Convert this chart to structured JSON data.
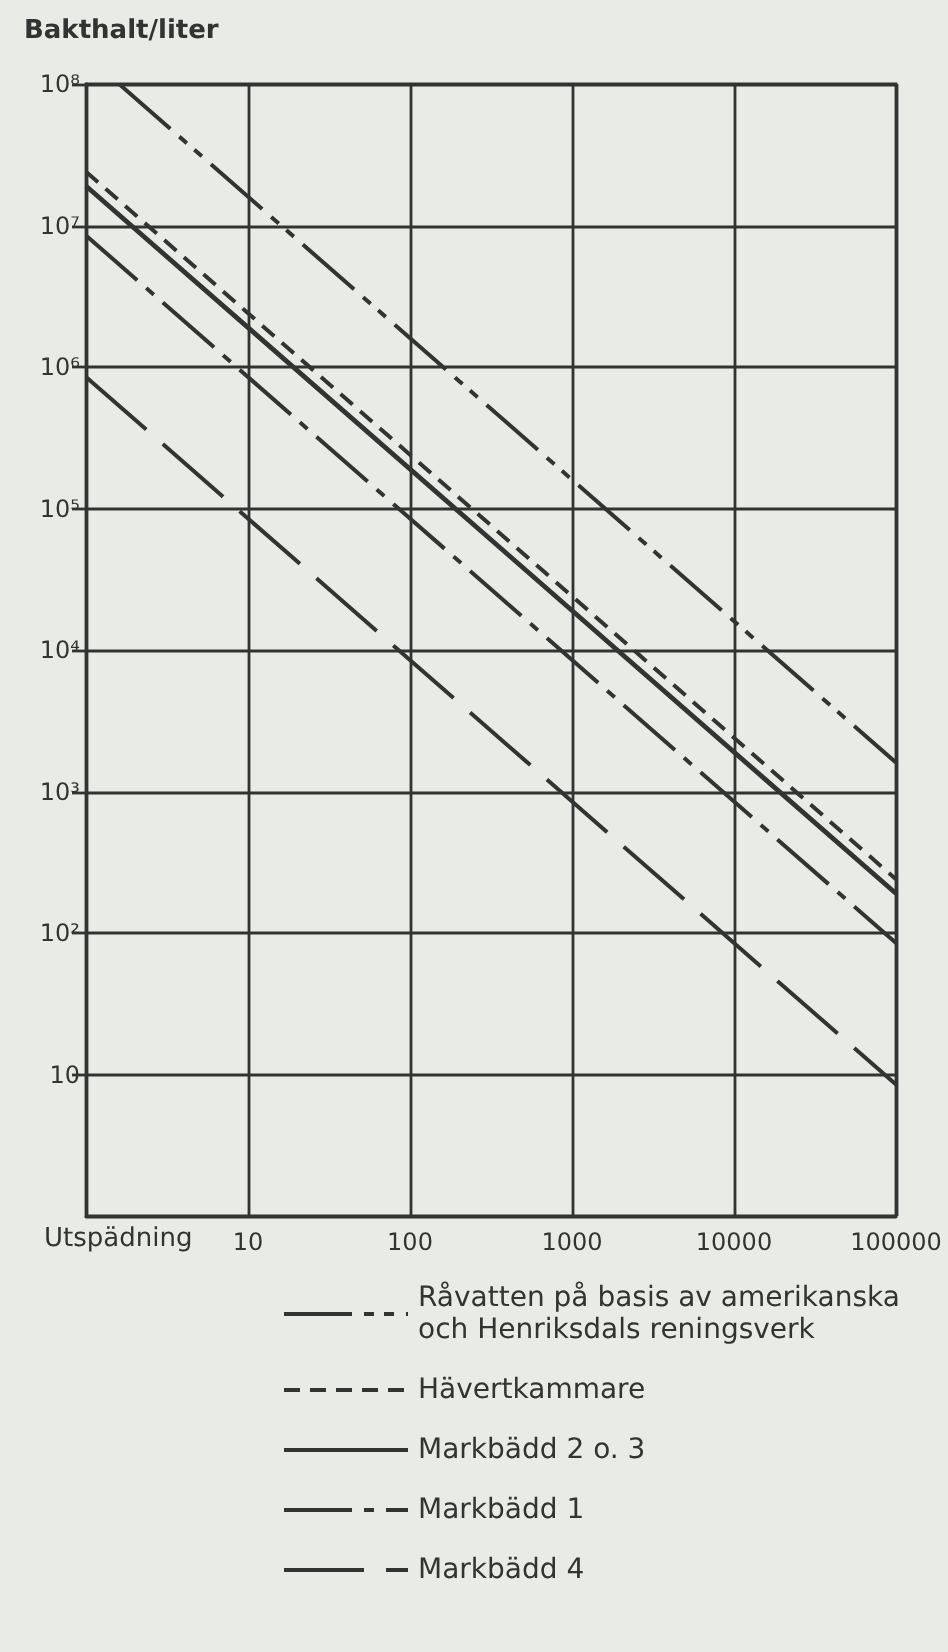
{
  "chart_data": {
    "type": "line",
    "xlabel": "Utspädning",
    "ylabel": "Bakthalt/liter",
    "log": "xy",
    "grid": true,
    "legend": "bottom",
    "marker": "none",
    "xlim": [
      1,
      100000
    ],
    "xticks": [
      10,
      100,
      1000,
      10000,
      100000
    ],
    "ylim": [
      1,
      100000000
    ],
    "yticks": [
      10,
      {
        "value": 100,
        "label": "10²"
      },
      {
        "value": 1000,
        "label": "10³"
      },
      {
        "value": 10000,
        "label": "10⁴"
      },
      {
        "value": 100000,
        "label": "10⁵"
      },
      {
        "value": 1000000,
        "label": "10⁶"
      },
      {
        "value": 10000000,
        "label": "10⁷"
      },
      {
        "value": 100000000,
        "label": "10⁸"
      }
    ],
    "series": [
      {
        "name": "Råvatten på basis av amerikanska och Henriksdals reningsverk",
        "color": "#333333",
        "line_style": "dashdotdot",
        "x": [
          1.6,
          100000
        ],
        "values": [
          100000000,
          1600
        ]
      },
      {
        "name": "Hävertkammare",
        "color": "#333333",
        "line_style": "dashed",
        "x": [
          1,
          100000
        ],
        "values": [
          24000000,
          240
        ]
      },
      {
        "name": "Markbädd 2 o. 3",
        "color": "#333333",
        "line_style": "solid",
        "x": [
          1,
          100000
        ],
        "values": [
          19000000,
          190
        ]
      },
      {
        "name": "Markbädd 1",
        "color": "#333333",
        "line_style": "dashdot",
        "x": [
          1,
          100000
        ],
        "values": [
          8500000,
          85
        ]
      },
      {
        "name": "Markbädd 4",
        "color": "#333333",
        "line_style": "longdash",
        "x": [
          1,
          100000
        ],
        "values": [
          850000,
          8.5
        ]
      }
    ]
  }
}
